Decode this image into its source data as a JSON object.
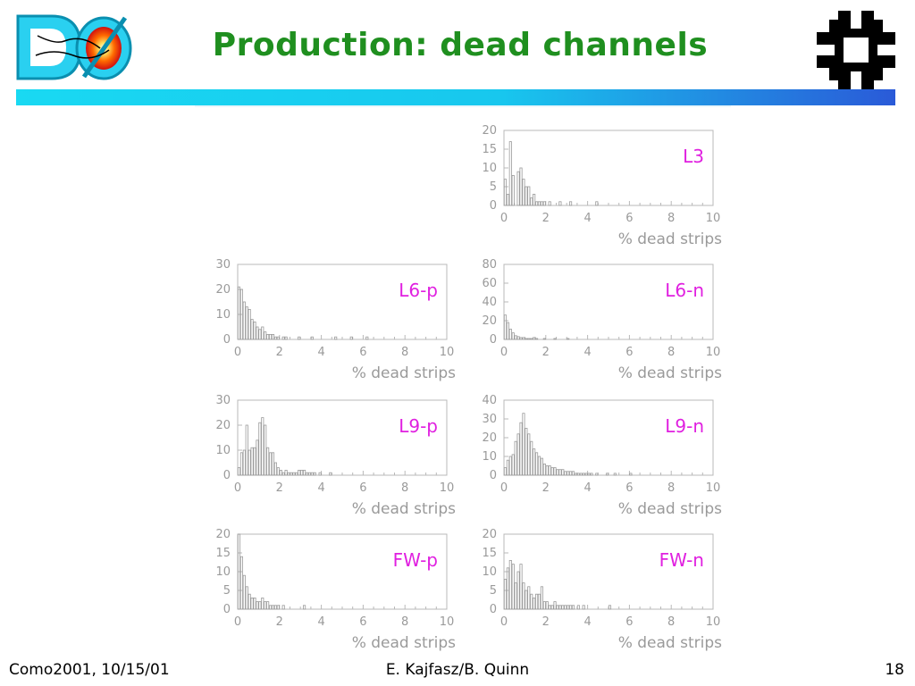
{
  "slide": {
    "title": "Production: dead channels",
    "footer_left": "Como2001, 10/15/01",
    "footer_center": "E. Kajfasz/B. Quinn",
    "footer_right": "18"
  },
  "colors": {
    "title": "#1f8f1f",
    "label": "#e020e0",
    "bar_start": "#19d9f2",
    "bar_end": "#2a5ad8",
    "fermilab": "#000000"
  },
  "icons": {
    "left_logo": "d0-logo",
    "right_logo": "fermilab-logo"
  },
  "chart_data": [
    {
      "id": "L3",
      "type": "bar",
      "label": "L3",
      "xlabel": "% dead strips",
      "xlim": [
        0,
        10
      ],
      "ylim": [
        0,
        20
      ],
      "xticks": [
        0,
        2,
        4,
        6,
        8,
        10
      ],
      "yticks": [
        0,
        5,
        10,
        15,
        20
      ],
      "values": [
        7,
        3,
        17,
        8,
        0,
        9,
        10,
        7,
        5,
        5,
        2,
        3,
        1,
        1,
        1,
        1,
        0,
        1,
        0,
        0,
        0,
        1,
        0,
        0,
        0,
        1,
        0,
        0,
        0,
        0,
        0,
        0,
        0,
        0,
        0,
        1,
        0,
        0,
        0,
        0,
        0,
        0,
        0,
        0,
        0,
        0,
        0,
        0,
        0,
        0,
        0,
        0,
        0,
        0,
        0,
        0,
        0,
        0,
        0,
        0,
        0,
        0,
        0,
        0,
        0,
        0,
        0,
        0,
        0,
        0,
        0,
        0,
        0,
        0,
        0,
        0,
        0,
        0,
        0,
        0
      ]
    },
    {
      "id": "L6-p",
      "type": "bar",
      "label": "L6-p",
      "xlabel": "% dead strips",
      "xlim": [
        0,
        10
      ],
      "ylim": [
        0,
        30
      ],
      "xticks": [
        0,
        2,
        4,
        6,
        8,
        10
      ],
      "yticks": [
        0,
        10,
        20,
        30
      ],
      "values": [
        21,
        20,
        15,
        13,
        12,
        8,
        7,
        5,
        4,
        5,
        3,
        2,
        2,
        2,
        1,
        1,
        0,
        1,
        1,
        0,
        0,
        0,
        0,
        1,
        0,
        0,
        0,
        0,
        1,
        0,
        0,
        0,
        0,
        0,
        0,
        0,
        0,
        1,
        0,
        0,
        0,
        0,
        0,
        1,
        0,
        0,
        0,
        0,
        0,
        1,
        0,
        0,
        0,
        0,
        0,
        0,
        0,
        0,
        0,
        0,
        0,
        0,
        0,
        0,
        0,
        0,
        0,
        0,
        0,
        0,
        0,
        0,
        0,
        0,
        0,
        0,
        0,
        0,
        0,
        0
      ]
    },
    {
      "id": "L6-n",
      "type": "bar",
      "label": "L6-n",
      "xlabel": "% dead strips",
      "xlim": [
        0,
        10
      ],
      "ylim": [
        0,
        80
      ],
      "xticks": [
        0,
        2,
        4,
        6,
        8,
        10
      ],
      "yticks": [
        0,
        20,
        40,
        60,
        80
      ],
      "values": [
        26,
        18,
        11,
        7,
        4,
        3,
        2,
        2,
        1,
        1,
        1,
        2,
        1,
        0,
        0,
        1,
        0,
        0,
        0,
        1,
        0,
        0,
        0,
        0,
        1,
        0,
        0,
        0,
        0,
        0,
        0,
        0,
        0,
        0,
        0,
        0,
        0,
        0,
        0,
        0,
        0,
        0,
        0,
        0,
        0,
        0,
        0,
        0,
        0,
        0,
        0,
        0,
        0,
        0,
        0,
        0,
        0,
        0,
        0,
        0,
        0,
        0,
        0,
        0,
        0,
        0,
        0,
        0,
        0,
        0,
        0,
        0,
        0,
        0,
        0,
        0,
        0,
        0,
        0,
        0
      ]
    },
    {
      "id": "L9-p",
      "type": "bar",
      "label": "L9-p",
      "xlabel": "% dead strips",
      "xlim": [
        0,
        10
      ],
      "ylim": [
        0,
        30
      ],
      "xticks": [
        0,
        2,
        4,
        6,
        8,
        10
      ],
      "yticks": [
        0,
        10,
        20,
        30
      ],
      "values": [
        3,
        9,
        10,
        20,
        10,
        11,
        11,
        14,
        21,
        23,
        20,
        11,
        9,
        9,
        5,
        3,
        2,
        1,
        2,
        1,
        1,
        1,
        1,
        2,
        2,
        2,
        1,
        1,
        1,
        1,
        0,
        1,
        0,
        0,
        0,
        1,
        0,
        0,
        0,
        0,
        0,
        0,
        0,
        0,
        0,
        0,
        0,
        0,
        0,
        0,
        0,
        0,
        0,
        0,
        0,
        0,
        0,
        0,
        0,
        0,
        0,
        0,
        0,
        0,
        0,
        0,
        0,
        0,
        0,
        0,
        0,
        0,
        0,
        0,
        0,
        0,
        0,
        0,
        0,
        0
      ]
    },
    {
      "id": "L9-n",
      "type": "bar",
      "label": "L9-n",
      "xlabel": "% dead strips",
      "xlim": [
        0,
        10
      ],
      "ylim": [
        0,
        40
      ],
      "xticks": [
        0,
        2,
        4,
        6,
        8,
        10
      ],
      "yticks": [
        0,
        10,
        20,
        30,
        40
      ],
      "values": [
        4,
        8,
        10,
        11,
        18,
        22,
        28,
        33,
        25,
        22,
        18,
        14,
        12,
        10,
        9,
        6,
        5,
        5,
        4,
        4,
        3,
        3,
        3,
        2,
        2,
        2,
        2,
        1,
        1,
        1,
        1,
        1,
        1,
        1,
        0,
        1,
        0,
        0,
        0,
        1,
        0,
        0,
        1,
        0,
        0,
        0,
        0,
        0,
        1,
        0,
        0,
        0,
        0,
        0,
        0,
        0,
        0,
        0,
        0,
        0,
        0,
        0,
        0,
        0,
        0,
        0,
        0,
        0,
        0,
        0,
        0,
        0,
        0,
        0,
        0,
        0,
        0,
        0,
        0,
        0
      ]
    },
    {
      "id": "FW-p",
      "type": "bar",
      "label": "FW-p",
      "xlabel": "% dead strips",
      "xlim": [
        0,
        10
      ],
      "ylim": [
        0,
        20
      ],
      "xticks": [
        0,
        2,
        4,
        6,
        8,
        10
      ],
      "yticks": [
        0,
        5,
        10,
        15,
        20
      ],
      "values": [
        20,
        14,
        9,
        6,
        4,
        3,
        3,
        2,
        2,
        3,
        2,
        2,
        1,
        1,
        1,
        1,
        0,
        1,
        0,
        0,
        0,
        0,
        0,
        0,
        0,
        1,
        0,
        0,
        0,
        0,
        0,
        0,
        0,
        0,
        0,
        0,
        0,
        0,
        0,
        0,
        0,
        0,
        0,
        0,
        0,
        0,
        0,
        0,
        0,
        0,
        0,
        0,
        0,
        0,
        0,
        0,
        0,
        0,
        0,
        0,
        0,
        0,
        0,
        0,
        0,
        0,
        0,
        0,
        0,
        0,
        0,
        0,
        0,
        0,
        0,
        0,
        0,
        0,
        0,
        0
      ]
    },
    {
      "id": "FW-n",
      "type": "bar",
      "label": "FW-n",
      "xlabel": "% dead strips",
      "xlim": [
        0,
        10
      ],
      "ylim": [
        0,
        20
      ],
      "xticks": [
        0,
        2,
        4,
        6,
        8,
        10
      ],
      "yticks": [
        0,
        5,
        10,
        15,
        20
      ],
      "values": [
        8,
        11,
        13,
        12,
        7,
        10,
        12,
        7,
        5,
        6,
        4,
        3,
        4,
        4,
        6,
        2,
        2,
        1,
        1,
        2,
        1,
        1,
        1,
        1,
        1,
        1,
        1,
        0,
        1,
        0,
        1,
        0,
        0,
        0,
        0,
        0,
        0,
        0,
        0,
        0,
        1,
        0,
        0,
        0,
        0,
        0,
        0,
        0,
        0,
        0,
        0,
        0,
        0,
        0,
        0,
        0,
        0,
        0,
        0,
        0,
        0,
        0,
        0,
        0,
        0,
        0,
        0,
        0,
        0,
        0,
        0,
        0,
        0,
        0,
        0,
        0,
        0,
        0,
        0,
        0
      ]
    }
  ]
}
